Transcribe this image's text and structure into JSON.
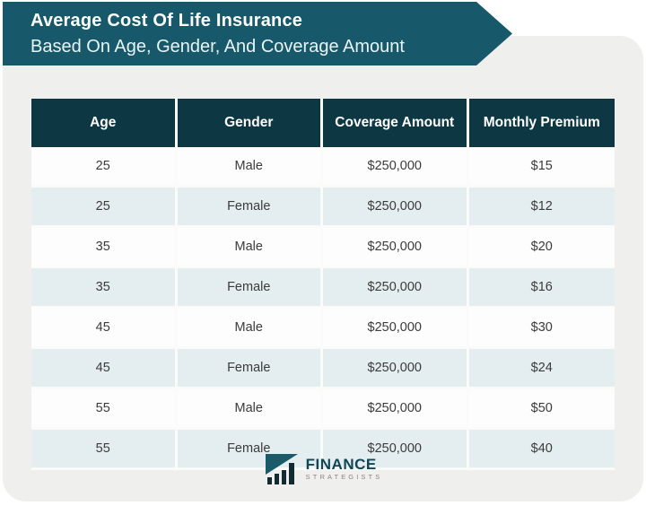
{
  "banner": {
    "title": "Average Cost Of Life Insurance",
    "subtitle": "Based On Age, Gender, And Coverage Amount"
  },
  "chart_data": {
    "type": "table",
    "title": "Average Cost Of Life Insurance",
    "subtitle": "Based On Age, Gender, And Coverage Amount",
    "columns": [
      "Age",
      "Gender",
      "Coverage Amount",
      "Monthly Premium"
    ],
    "rows": [
      [
        "25",
        "Male",
        "$250,000",
        "$15"
      ],
      [
        "25",
        "Female",
        "$250,000",
        "$12"
      ],
      [
        "35",
        "Male",
        "$250,000",
        "$20"
      ],
      [
        "35",
        "Female",
        "$250,000",
        "$16"
      ],
      [
        "45",
        "Male",
        "$250,000",
        "$30"
      ],
      [
        "45",
        "Female",
        "$250,000",
        "$24"
      ],
      [
        "55",
        "Male",
        "$250,000",
        "$50"
      ],
      [
        "55",
        "Female",
        "$250,000",
        "$40"
      ]
    ]
  },
  "footer": {
    "brand_primary": "FINANCE",
    "brand_secondary": "STRATEGISTS"
  },
  "colors": {
    "banner-bg": "#17596a",
    "table-header-bg": "#0d3743",
    "row-bg": "#fdfdfd",
    "row-alt-bg": "#e4eef1",
    "card-bg": "#efefee",
    "text-dark": "#3b3b3b",
    "brand-teal": "#114654",
    "brand-gray": "#8f827e"
  }
}
